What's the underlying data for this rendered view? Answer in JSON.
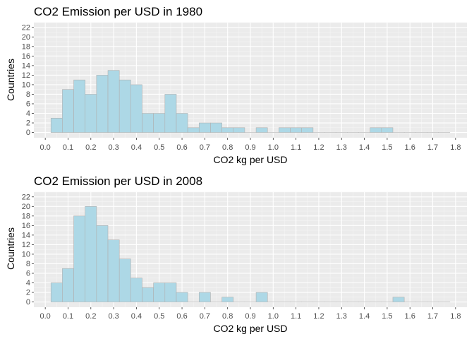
{
  "chart_data": [
    {
      "type": "bar",
      "title": "CO2 Emission per USD in 1980",
      "xlabel": "CO2 kg per USD",
      "ylabel": "Countries",
      "xlim": [
        -0.05,
        1.85
      ],
      "ylim": [
        -1.1,
        23
      ],
      "xticks": [
        "0.0",
        "0.1",
        "0.2",
        "0.3",
        "0.4",
        "0.5",
        "0.6",
        "0.7",
        "0.8",
        "0.9",
        "1.0",
        "1.1",
        "1.2",
        "1.3",
        "1.4",
        "1.5",
        "1.6",
        "1.7",
        "1.8"
      ],
      "yticks": [
        "0",
        "2",
        "4",
        "6",
        "8",
        "10",
        "12",
        "14",
        "16",
        "18",
        "20",
        "22"
      ],
      "bin_start": 0.025,
      "bin_width": 0.05,
      "values": [
        3,
        9,
        11,
        8,
        12,
        13,
        11,
        10,
        4,
        4,
        8,
        4,
        1,
        2,
        2,
        1,
        1,
        0,
        1,
        0,
        1,
        1,
        1,
        0,
        0,
        0,
        0,
        0,
        1,
        1,
        0,
        0,
        0,
        0,
        0
      ],
      "grid": true,
      "bar_fill": "#ADD8E6",
      "bar_stroke": "#B0B0B0",
      "panel_bg": "#EBEBEB"
    },
    {
      "type": "bar",
      "title": "CO2 Emission per USD in 2008",
      "xlabel": "CO2 kg per USD",
      "ylabel": "Countries",
      "xlim": [
        -0.05,
        1.85
      ],
      "ylim": [
        -1.1,
        23
      ],
      "xticks": [
        "0.0",
        "0.1",
        "0.2",
        "0.3",
        "0.4",
        "0.5",
        "0.6",
        "0.7",
        "0.8",
        "0.9",
        "1.0",
        "1.1",
        "1.2",
        "1.3",
        "1.4",
        "1.5",
        "1.6",
        "1.7",
        "1.8"
      ],
      "yticks": [
        "0",
        "2",
        "4",
        "6",
        "8",
        "10",
        "12",
        "14",
        "16",
        "18",
        "20",
        "22"
      ],
      "bin_start": 0.025,
      "bin_width": 0.05,
      "values": [
        4,
        7,
        18,
        20,
        16,
        13,
        9,
        5,
        3,
        4,
        4,
        2,
        0,
        2,
        0,
        1,
        0,
        0,
        2,
        0,
        0,
        0,
        0,
        0,
        0,
        0,
        0,
        0,
        0,
        0,
        1,
        0,
        0,
        0,
        0
      ],
      "grid": true,
      "bar_fill": "#ADD8E6",
      "bar_stroke": "#B0B0B0",
      "panel_bg": "#EBEBEB"
    }
  ]
}
